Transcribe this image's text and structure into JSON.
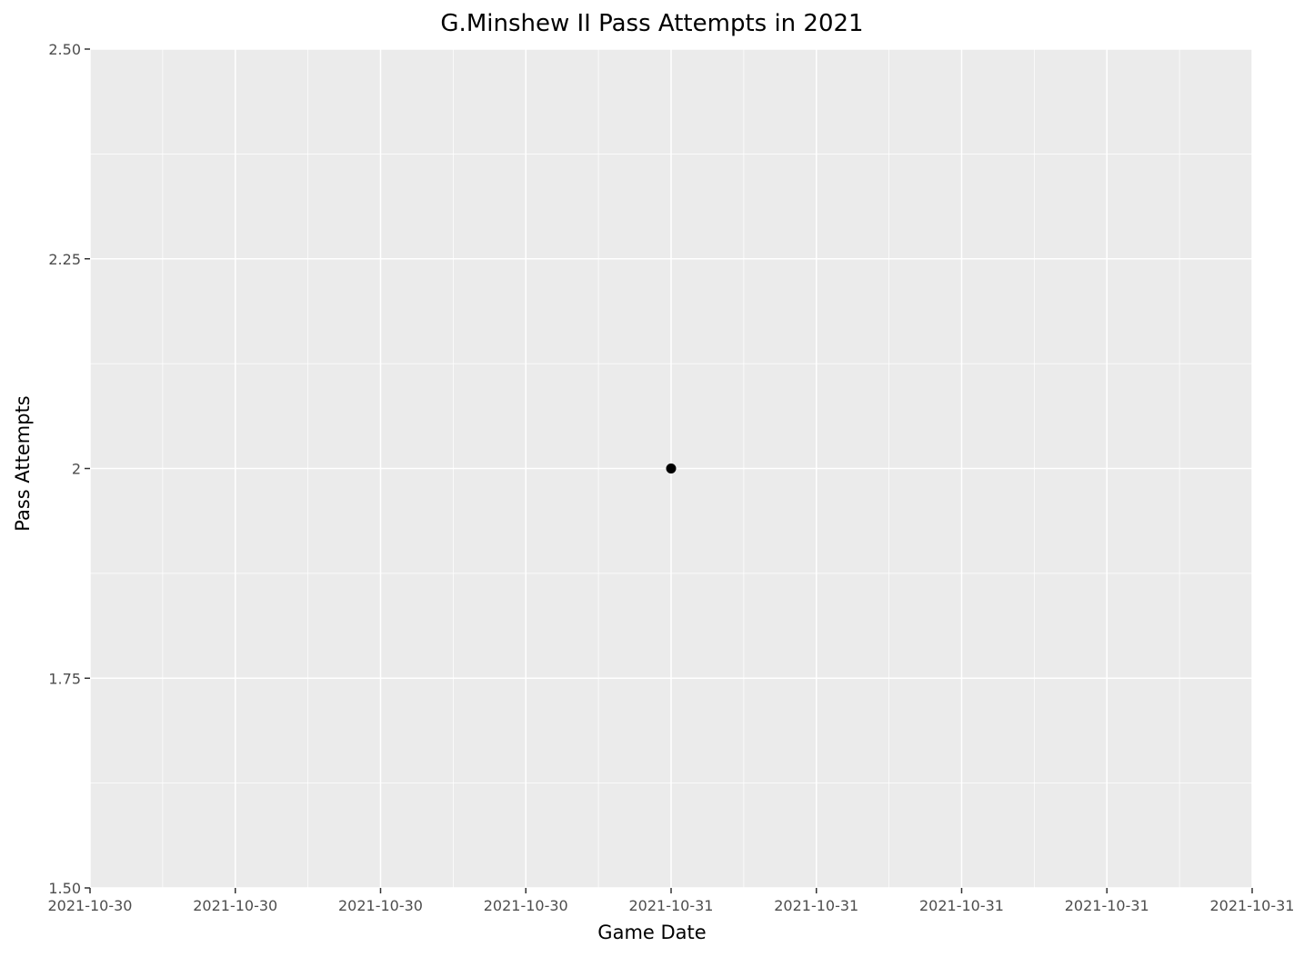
{
  "chart_data": {
    "type": "scatter",
    "title": "G.Minshew II Pass Attempts in 2021",
    "xlabel": "Game Date",
    "ylabel": "Pass Attempts",
    "x_tick_labels": [
      "2021-10-30",
      "2021-10-30",
      "2021-10-30",
      "2021-10-30",
      "2021-10-31",
      "2021-10-31",
      "2021-10-31",
      "2021-10-31",
      "2021-10-31"
    ],
    "y_ticks": [
      1.5,
      1.75,
      2,
      2.25,
      2.5
    ],
    "y_tick_labels": [
      "1.50",
      "1.75",
      "2",
      "2.25",
      "2.50"
    ],
    "ylim": [
      1.5,
      2.5
    ],
    "xlim": [
      -4,
      4
    ],
    "x_ticks": [
      -4,
      -3,
      -2,
      -1,
      0,
      1,
      2,
      3,
      4
    ],
    "grid": true,
    "series": [
      {
        "name": "Pass Attempts",
        "points": [
          {
            "x": 0,
            "date": "2021-10-31",
            "y": 2
          }
        ]
      }
    ],
    "colors": {
      "panel": "#ebebeb",
      "grid": "#ffffff",
      "point": "#000000",
      "tick_text": "#4d4d4d"
    }
  }
}
